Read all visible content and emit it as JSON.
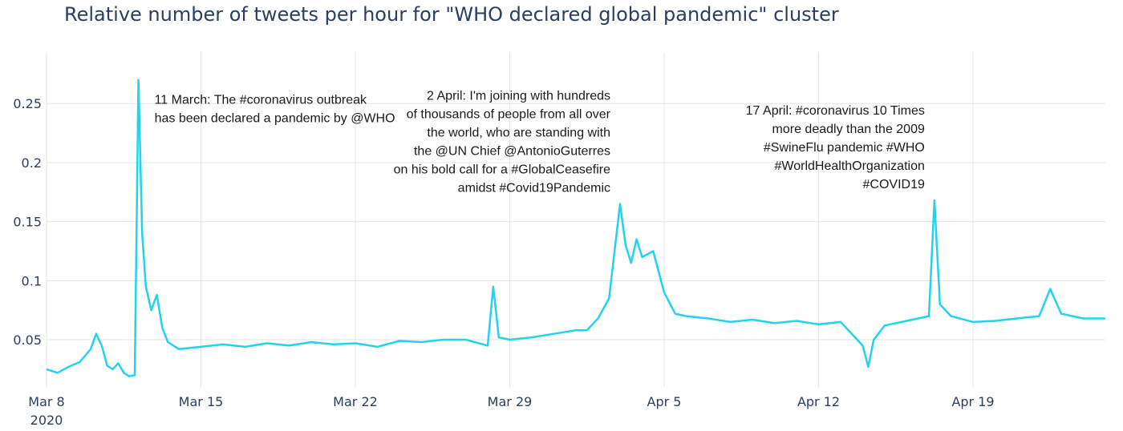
{
  "chart_data": {
    "type": "line",
    "title": "Relative number of tweets per hour for \"WHO declared global pandemic\" cluster",
    "xlabel": "",
    "ylabel": "",
    "x_range": [
      "2020-03-08",
      "2020-04-25"
    ],
    "ylim": [
      0.01,
      0.28
    ],
    "y_ticks": [
      0.05,
      0.1,
      0.15,
      0.2,
      0.25
    ],
    "y_tick_labels": [
      "0.05",
      "0.1",
      "0.15",
      "0.2",
      "0.25"
    ],
    "x_ticks": [
      "2020-03-08",
      "2020-03-15",
      "2020-03-22",
      "2020-03-29",
      "2020-04-05",
      "2020-04-12",
      "2020-04-19"
    ],
    "x_tick_labels": [
      "Mar 8",
      "Mar 15",
      "Mar 22",
      "Mar 29",
      "Apr 5",
      "Apr 12",
      "Apr 19"
    ],
    "x_tick_sublabel": "2020",
    "grid": true,
    "line_color": "#22d3ee",
    "series": [
      {
        "points": [
          [
            "2020-03-08",
            0.025
          ],
          [
            "2020-03-08T12:00",
            0.022
          ],
          [
            "2020-03-09",
            0.027
          ],
          [
            "2020-03-09T12:00",
            0.031
          ],
          [
            "2020-03-10",
            0.042
          ],
          [
            "2020-03-10T06:00",
            0.055
          ],
          [
            "2020-03-10T12:00",
            0.045
          ],
          [
            "2020-03-10T18:00",
            0.028
          ],
          [
            "2020-03-11",
            0.025
          ],
          [
            "2020-03-11T06:00",
            0.03
          ],
          [
            "2020-03-11T12:00",
            0.022
          ],
          [
            "2020-03-11T18:00",
            0.019
          ],
          [
            "2020-03-12T00:00",
            0.02
          ],
          [
            "2020-03-12T04:00",
            0.27
          ],
          [
            "2020-03-12T08:00",
            0.14
          ],
          [
            "2020-03-12T12:00",
            0.095
          ],
          [
            "2020-03-12T18:00",
            0.075
          ],
          [
            "2020-03-13T00:00",
            0.088
          ],
          [
            "2020-03-13T06:00",
            0.06
          ],
          [
            "2020-03-13T12:00",
            0.048
          ],
          [
            "2020-03-14",
            0.042
          ],
          [
            "2020-03-15",
            0.044
          ],
          [
            "2020-03-16",
            0.046
          ],
          [
            "2020-03-17",
            0.044
          ],
          [
            "2020-03-18",
            0.047
          ],
          [
            "2020-03-19",
            0.045
          ],
          [
            "2020-03-20",
            0.048
          ],
          [
            "2020-03-21",
            0.046
          ],
          [
            "2020-03-22",
            0.047
          ],
          [
            "2020-03-23",
            0.044
          ],
          [
            "2020-03-24",
            0.049
          ],
          [
            "2020-03-25",
            0.048
          ],
          [
            "2020-03-26",
            0.05
          ],
          [
            "2020-03-27",
            0.05
          ],
          [
            "2020-03-28T00:00",
            0.045
          ],
          [
            "2020-03-28T06:00",
            0.095
          ],
          [
            "2020-03-28T12:00",
            0.052
          ],
          [
            "2020-03-29",
            0.05
          ],
          [
            "2020-03-30",
            0.052
          ],
          [
            "2020-03-31",
            0.055
          ],
          [
            "2020-04-01",
            0.058
          ],
          [
            "2020-04-01T12:00",
            0.058
          ],
          [
            "2020-04-02",
            0.068
          ],
          [
            "2020-04-02T12:00",
            0.085
          ],
          [
            "2020-04-03T00:00",
            0.165
          ],
          [
            "2020-04-03T06:00",
            0.13
          ],
          [
            "2020-04-03T12:00",
            0.115
          ],
          [
            "2020-04-03T18:00",
            0.135
          ],
          [
            "2020-04-04",
            0.12
          ],
          [
            "2020-04-04T12:00",
            0.125
          ],
          [
            "2020-04-05",
            0.09
          ],
          [
            "2020-04-05T12:00",
            0.072
          ],
          [
            "2020-04-06",
            0.07
          ],
          [
            "2020-04-07",
            0.068
          ],
          [
            "2020-04-08",
            0.065
          ],
          [
            "2020-04-09",
            0.067
          ],
          [
            "2020-04-10",
            0.064
          ],
          [
            "2020-04-11",
            0.066
          ],
          [
            "2020-04-12",
            0.063
          ],
          [
            "2020-04-13",
            0.065
          ],
          [
            "2020-04-14T00:00",
            0.045
          ],
          [
            "2020-04-14T06:00",
            0.027
          ],
          [
            "2020-04-14T12:00",
            0.05
          ],
          [
            "2020-04-15",
            0.062
          ],
          [
            "2020-04-16",
            0.066
          ],
          [
            "2020-04-17T00:00",
            0.07
          ],
          [
            "2020-04-17T06:00",
            0.168
          ],
          [
            "2020-04-17T12:00",
            0.08
          ],
          [
            "2020-04-18",
            0.07
          ],
          [
            "2020-04-19",
            0.065
          ],
          [
            "2020-04-20",
            0.066
          ],
          [
            "2020-04-21",
            0.068
          ],
          [
            "2020-04-22",
            0.07
          ],
          [
            "2020-04-22T12:00",
            0.093
          ],
          [
            "2020-04-23",
            0.072
          ],
          [
            "2020-04-24",
            0.068
          ],
          [
            "2020-04-25",
            0.068
          ]
        ]
      }
    ],
    "annotations": [
      {
        "x": "2020-03-12T04:00",
        "y": 0.27,
        "align": "left",
        "lines": [
          "11 March: The #coronavirus outbreak",
          "has been declared a pandemic by @WHO"
        ]
      },
      {
        "x": "2020-04-03T00:00",
        "y": 0.165,
        "align": "right",
        "lines": [
          "2 April: I'm joining with hundreds",
          "of thousands of people from all over",
          "the world, who are standing with",
          "the @UN Chief @AntonioGuterres",
          "on his bold call for a #GlobalCeasefire",
          "amidst #Covid19Pandemic"
        ]
      },
      {
        "x": "2020-04-17T06:00",
        "y": 0.168,
        "align": "right",
        "lines": [
          "17 April: #coronavirus 10 Times",
          "more deadly than the 2009",
          "#SwineFlu pandemic #WHO",
          "#WorldHealthOrganization",
          "#COVID19"
        ]
      }
    ]
  }
}
